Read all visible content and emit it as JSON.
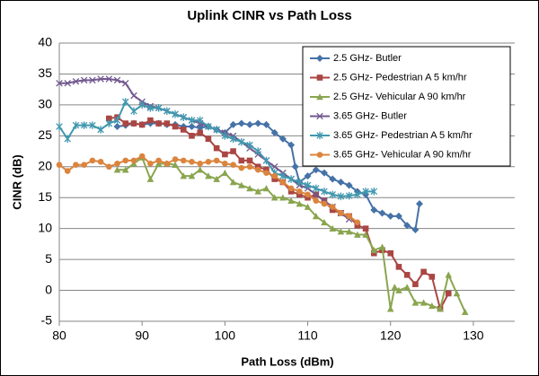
{
  "chart_data": {
    "type": "line",
    "title": "Uplink CINR vs Path Loss",
    "xlabel": "Path Loss (dBm)",
    "ylabel": "CINR (dB)",
    "xlim": [
      80,
      135
    ],
    "xticks": [
      80,
      90,
      100,
      110,
      120,
      130
    ],
    "ylim": [
      -5,
      40
    ],
    "yticks": [
      -5,
      0,
      5,
      10,
      15,
      20,
      25,
      30,
      35,
      40
    ],
    "grid": true,
    "legend": "upper right",
    "series": [
      {
        "name": "2.5 GHz- Butler",
        "color": "#4572a7",
        "marker": "diamond",
        "x": [
          87,
          88,
          89,
          90,
          91,
          92,
          93,
          94,
          95,
          96,
          97,
          98,
          99,
          100,
          101,
          102,
          103,
          104,
          105,
          106,
          107,
          108,
          108.5,
          109,
          110,
          111,
          112,
          113,
          114,
          115,
          116,
          117,
          118,
          119,
          120,
          121,
          122,
          123,
          123.5
        ],
        "values": [
          26.5,
          26.7,
          27,
          26.8,
          27,
          27,
          26.8,
          26.8,
          26.5,
          26.5,
          26.3,
          26.5,
          26,
          25.5,
          26.8,
          27,
          26.8,
          27,
          26.8,
          25.5,
          24.5,
          23.5,
          20,
          17.5,
          18.5,
          19.5,
          19,
          18,
          17.5,
          17,
          16,
          15.5,
          13,
          12.5,
          12,
          12,
          10.5,
          9.8,
          14
        ]
      },
      {
        "name": "2.5 GHz- Pedestrian A 5 km/hr",
        "color": "#aa4643",
        "marker": "square",
        "x": [
          86,
          87,
          88,
          89,
          90,
          91,
          92,
          93,
          94,
          95,
          96,
          97,
          98,
          99,
          100,
          101,
          102,
          103,
          104,
          105,
          106,
          107,
          108,
          109,
          110,
          111,
          112,
          113,
          114,
          115,
          116,
          117,
          118,
          119,
          120,
          121,
          122,
          123,
          124,
          125,
          126,
          127
        ],
        "values": [
          27.8,
          28,
          27,
          27,
          26.8,
          27.5,
          27,
          27,
          26.5,
          26,
          25,
          25.5,
          24.5,
          23,
          22,
          22.5,
          21,
          21,
          20,
          19.5,
          18,
          17.5,
          16,
          15.5,
          15,
          15.5,
          14.5,
          13,
          12.5,
          12,
          10.5,
          10,
          6,
          6.5,
          6,
          3.8,
          2.5,
          1,
          3,
          2.2,
          -3,
          -0.5
        ]
      },
      {
        "name": "2.5 GHz- Vehicular A 90 km/hr",
        "color": "#89a54e",
        "marker": "triangle",
        "x": [
          87,
          88,
          89,
          90,
          91,
          92,
          93,
          94,
          95,
          96,
          97,
          98,
          99,
          100,
          101,
          102,
          103,
          104,
          105,
          106,
          107,
          108,
          109,
          110,
          111,
          112,
          113,
          114,
          115,
          116,
          117,
          118,
          119,
          120,
          120.5,
          121,
          122,
          123,
          124,
          125,
          126,
          127,
          128,
          129
        ],
        "values": [
          19.5,
          19.5,
          20.5,
          21.5,
          18,
          20.5,
          20.5,
          20.3,
          18.5,
          18.5,
          19.5,
          18.5,
          18,
          19,
          17.5,
          17,
          16.5,
          16,
          16.5,
          15,
          15,
          14.5,
          14,
          13.5,
          12,
          11,
          10,
          9.5,
          9.5,
          9,
          9,
          6.5,
          7,
          -3,
          0.5,
          0,
          0.5,
          -2,
          -2,
          -2.5,
          -3,
          2.5,
          -0.5,
          -3.5
        ]
      },
      {
        "name": "3.65 GHz- Butler",
        "color": "#71588f",
        "marker": "x",
        "x": [
          80,
          81,
          82,
          83,
          84,
          85,
          86,
          87,
          88,
          89,
          90,
          91,
          92,
          93,
          94,
          95,
          96,
          97,
          98,
          99,
          100,
          101,
          102,
          103,
          104,
          105,
          106,
          107,
          108,
          109,
          110,
          111,
          112,
          113,
          114,
          115
        ],
        "values": [
          33.5,
          33.5,
          33.8,
          34,
          34,
          34.2,
          34.2,
          34,
          33.5,
          31.5,
          30.5,
          29.8,
          29.5,
          29,
          28.5,
          28,
          27.5,
          27,
          26.5,
          26,
          25.5,
          25,
          24,
          23,
          22,
          21,
          20,
          19,
          18,
          17,
          16.5,
          15.5,
          14.5,
          13.5,
          12.5,
          11.5
        ]
      },
      {
        "name": "3.65 GHz- Pedestrian A 5 km/hr",
        "color": "#4198af",
        "marker": "star",
        "x": [
          80,
          81,
          82,
          83,
          84,
          85,
          86,
          87,
          88,
          89,
          90,
          91,
          92,
          93,
          94,
          95,
          96,
          97,
          98,
          99,
          100,
          101,
          102,
          103,
          104,
          105,
          106,
          107,
          108,
          109,
          110,
          111,
          112,
          113,
          114,
          115,
          116,
          117,
          118
        ],
        "values": [
          26.5,
          24.5,
          26.7,
          26.7,
          26.7,
          26,
          27,
          27.5,
          30.5,
          29,
          30,
          29.5,
          29.5,
          29,
          28.5,
          28,
          27.5,
          27.5,
          26.5,
          26,
          25,
          24.5,
          24,
          23.5,
          22.5,
          21,
          19,
          18.5,
          18,
          17.5,
          17,
          16.5,
          16,
          15.5,
          15.2,
          15.3,
          15.5,
          16,
          16
        ]
      },
      {
        "name": "3.65 GHz- Vehicular A 90 km/hr",
        "color": "#db843d",
        "marker": "circle",
        "x": [
          80,
          81,
          82,
          83,
          84,
          85,
          86,
          87,
          88,
          89,
          90,
          91,
          92,
          93,
          94,
          95,
          96,
          97,
          98,
          99,
          100,
          101,
          102,
          103,
          104,
          105,
          106,
          107,
          108,
          109,
          110,
          111,
          112,
          113,
          114,
          115,
          116
        ],
        "values": [
          20.3,
          19.3,
          20.3,
          20.3,
          21,
          20.8,
          20,
          20.5,
          21,
          21,
          21.7,
          20.5,
          21,
          20.5,
          21.2,
          21,
          20.8,
          20.5,
          20.8,
          21,
          20.5,
          20.3,
          19.8,
          20,
          19.5,
          19,
          18.5,
          17.5,
          16.5,
          16,
          15.5,
          14.5,
          14,
          13.5,
          12.5,
          12,
          11
        ]
      }
    ]
  }
}
